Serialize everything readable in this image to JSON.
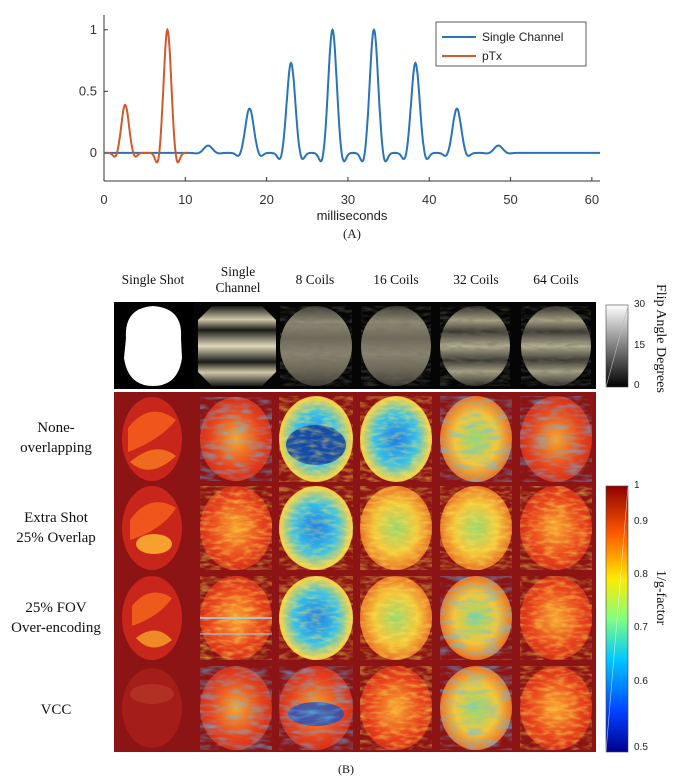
{
  "chart_data": {
    "type": "line",
    "title": "",
    "xlabel": "milliseconds",
    "ylabel": "",
    "xlim": [
      0,
      61
    ],
    "ylim": [
      -0.22,
      1.12
    ],
    "xticks": [
      0,
      10,
      20,
      30,
      40,
      50,
      60
    ],
    "yticks": [
      0,
      0.5,
      1
    ],
    "legend_position": "top-right",
    "series": [
      {
        "name": "Single Channel",
        "color": "#2a73b8",
        "description": "periodic sinc-like peaks centered near 28 and 33 ms",
        "peaks_x": [
          12.8,
          17.9,
          23.0,
          28.1,
          33.2,
          38.3,
          43.4,
          48.5
        ],
        "peaks_y": [
          0.06,
          0.36,
          0.73,
          1.0,
          1.0,
          0.73,
          0.36,
          0.06
        ]
      },
      {
        "name": "pTx",
        "color": "#d05a2c",
        "description": "two peaks before 10 ms",
        "peaks_x": [
          2.6,
          7.8
        ],
        "peaks_y": [
          0.39,
          1.0
        ]
      }
    ]
  },
  "figure": {
    "panel_a_label": "(A)",
    "panel_b_label": "(B)",
    "columns": [
      "Single Shot",
      "Single Channel",
      "8 Coils",
      "16 Coils",
      "32 Coils",
      "64 Coils"
    ],
    "flip_row": {
      "colorbar_label": "Flip Angle Degrees",
      "ticks": [
        "30",
        "15",
        "0"
      ]
    },
    "gfactor": {
      "colorbar_label": "1/g-factor",
      "ticks": [
        "1",
        "0.9",
        "0.8",
        "0.7",
        "0.6",
        "0.5"
      ],
      "rows": [
        "None-overlapping",
        "Extra Shot 25% Overlap",
        "25% FOV Over-encoding",
        "VCC"
      ]
    }
  }
}
